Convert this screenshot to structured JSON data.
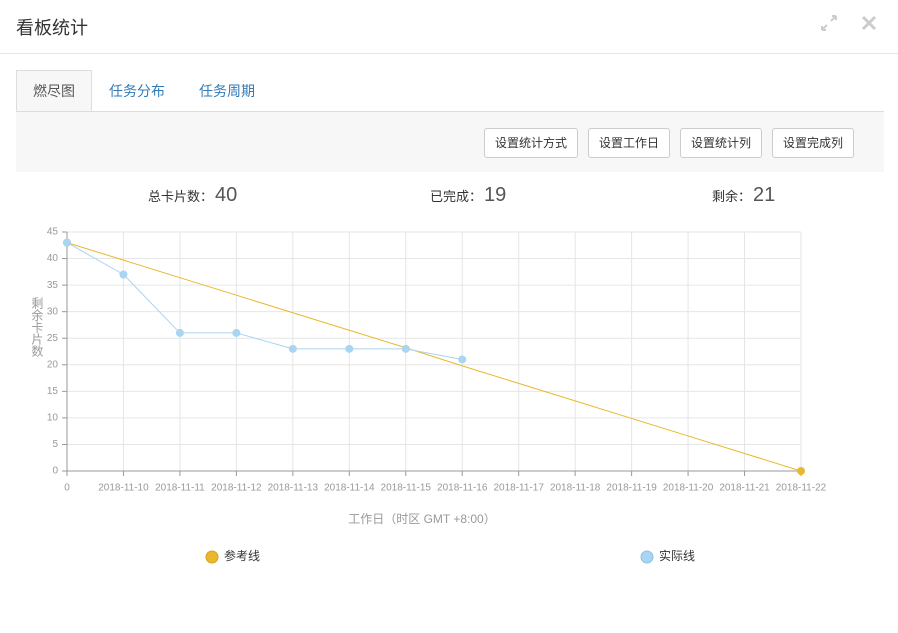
{
  "header": {
    "title": "看板统计"
  },
  "tabs": [
    "燃尽图",
    "任务分布",
    "任务周期"
  ],
  "active_tab": 0,
  "buttons": [
    "设置统计方式",
    "设置工作日",
    "设置统计列",
    "设置完成列"
  ],
  "summary": [
    {
      "label": "总卡片数：",
      "value": 40
    },
    {
      "label": "已完成：",
      "value": 19
    },
    {
      "label": "剩余：",
      "value": 21
    }
  ],
  "chart_data": {
    "type": "line",
    "x_label": "工作日（时区 GMT +8:00）",
    "y_label": "剩余卡片数",
    "categories": [
      "0",
      "2018-11-10",
      "2018-11-11",
      "2018-11-12",
      "2018-11-13",
      "2018-11-14",
      "2018-11-15",
      "2018-11-16",
      "2018-11-17",
      "2018-11-18",
      "2018-11-19",
      "2018-11-20",
      "2018-11-21",
      "2018-11-22"
    ],
    "series": [
      {
        "name": "参考线",
        "color": "#e9b82e",
        "values": [
          43,
          39.7,
          36.4,
          33.1,
          29.8,
          26.5,
          23.2,
          19.8,
          16.5,
          13.2,
          9.9,
          6.6,
          3.3,
          0
        ]
      },
      {
        "name": "实际线",
        "color": "#a9d4f2",
        "values": [
          43,
          37,
          26,
          26,
          23,
          23,
          23,
          21,
          null,
          null,
          null,
          null,
          null,
          null
        ]
      }
    ],
    "ylim": [
      0,
      45
    ],
    "yticks": [
      0,
      5,
      10,
      15,
      20,
      25,
      30,
      35,
      40,
      45
    ],
    "grid": true
  }
}
